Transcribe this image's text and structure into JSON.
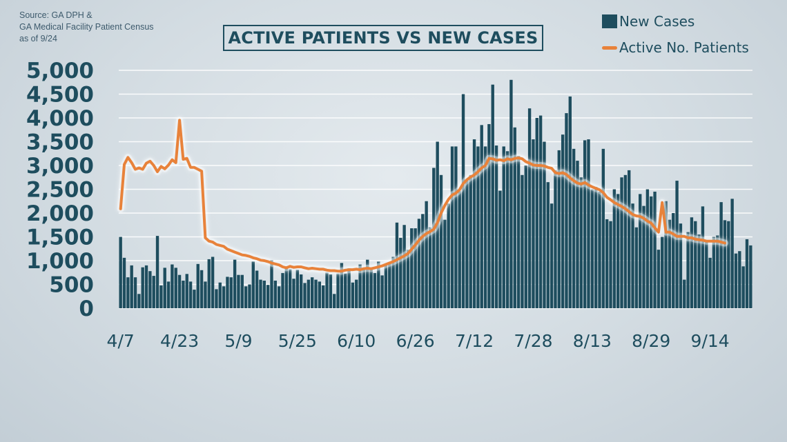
{
  "source": {
    "lines": [
      "Source: GA DPH &",
      "GA Medical Facility Patient Census",
      "as of 9/24"
    ]
  },
  "colors": {
    "bars": "#1e4d5e",
    "line": "#e8823a",
    "text": "#1e4d5e",
    "grid": "#ffffff"
  },
  "chart_data": {
    "type": "bar",
    "title": "ACTIVE PATIENTS VS NEW CASES",
    "xlabel": "",
    "ylabel": "",
    "ylim": [
      0,
      5000
    ],
    "yticks": [
      "5,000",
      "4,500",
      "4,000",
      "3,500",
      "3,000",
      "2,500",
      "2,000",
      "1,500",
      "1,000",
      "500",
      "0"
    ],
    "ytick_values": [
      5000,
      4500,
      4000,
      3500,
      3000,
      2500,
      2000,
      1500,
      1000,
      500,
      0
    ],
    "xticks": [
      "4/7",
      "4/23",
      "5/9",
      "5/25",
      "6/10",
      "6/26",
      "7/12",
      "7/28",
      "8/13",
      "8/29",
      "9/14"
    ],
    "grid": true,
    "legend_position": "top-right",
    "series": [
      {
        "name": "New Cases",
        "type": "bar",
        "start_date": "4/7",
        "values": [
          1500,
          1060,
          650,
          900,
          650,
          300,
          860,
          900,
          780,
          680,
          1520,
          480,
          850,
          560,
          920,
          850,
          700,
          580,
          720,
          560,
          390,
          930,
          800,
          560,
          1030,
          1080,
          400,
          540,
          460,
          660,
          650,
          1020,
          700,
          700,
          460,
          500,
          980,
          790,
          600,
          580,
          490,
          1010,
          580,
          460,
          740,
          880,
          820,
          620,
          810,
          710,
          530,
          600,
          650,
          600,
          560,
          480,
          750,
          710,
          300,
          730,
          950,
          730,
          840,
          540,
          600,
          920,
          830,
          1020,
          850,
          740,
          980,
          690,
          920,
          960,
          1080,
          1800,
          1480,
          1750,
          1230,
          1680,
          1680,
          1880,
          1980,
          2250,
          1700,
          2950,
          3500,
          2800,
          1860,
          2200,
          3400,
          3400,
          2460,
          4500,
          2700,
          2800,
          3550,
          3400,
          3850,
          3400,
          3870,
          4700,
          3420,
          2470,
          3400,
          3300,
          4800,
          3800,
          3200,
          2800,
          3000,
          4200,
          3550,
          4000,
          4050,
          3500,
          2650,
          2200,
          2900,
          3320,
          3650,
          4100,
          4450,
          3350,
          3100,
          2750,
          3530,
          3550,
          2500,
          2550,
          2450,
          3350,
          1870,
          1830,
          2500,
          2400,
          2750,
          2800,
          2900,
          2200,
          1700,
          2400,
          2150,
          2500,
          2350,
          2450,
          1230,
          1500,
          2250,
          1860,
          2000,
          2680,
          1780,
          600,
          1600,
          1910,
          1830,
          1550,
          2140,
          1420,
          1060,
          1500,
          1530,
          2230,
          1850,
          1830,
          2300,
          1150,
          1200,
          880,
          1450,
          1320
        ]
      },
      {
        "name": "Active No. Patients",
        "type": "line",
        "start_date": "4/7",
        "values": [
          2090,
          3020,
          3170,
          3060,
          2920,
          2950,
          2920,
          3050,
          3090,
          3000,
          2870,
          2980,
          2930,
          3010,
          3120,
          3060,
          3950,
          3130,
          3150,
          2960,
          2960,
          2920,
          2880,
          1480,
          1410,
          1390,
          1340,
          1320,
          1300,
          1240,
          1210,
          1180,
          1150,
          1120,
          1110,
          1090,
          1060,
          1040,
          1010,
          1000,
          980,
          950,
          930,
          910,
          870,
          850,
          880,
          860,
          870,
          870,
          850,
          830,
          840,
          830,
          820,
          820,
          800,
          790,
          790,
          780,
          780,
          800,
          810,
          810,
          820,
          810,
          830,
          840,
          830,
          850,
          870,
          890,
          920,
          950,
          980,
          1020,
          1060,
          1100,
          1150,
          1240,
          1330,
          1430,
          1510,
          1570,
          1610,
          1660,
          1800,
          2000,
          2160,
          2290,
          2380,
          2420,
          2490,
          2620,
          2700,
          2760,
          2800,
          2870,
          2950,
          3000,
          3150,
          3140,
          3110,
          3120,
          3100,
          3140,
          3120,
          3150,
          3160,
          3140,
          3080,
          3050,
          3010,
          3000,
          3000,
          2990,
          2960,
          2940,
          2850,
          2830,
          2850,
          2810,
          2740,
          2680,
          2630,
          2610,
          2640,
          2590,
          2550,
          2520,
          2490,
          2430,
          2330,
          2280,
          2220,
          2180,
          2140,
          2090,
          2030,
          1970,
          1940,
          1930,
          1890,
          1830,
          1790,
          1690,
          1600,
          2220,
          1600,
          1600,
          1560,
          1510,
          1510,
          1510,
          1480,
          1480,
          1450,
          1440,
          1430,
          1410,
          1410,
          1410,
          1410,
          1390,
          1370
        ]
      }
    ]
  }
}
